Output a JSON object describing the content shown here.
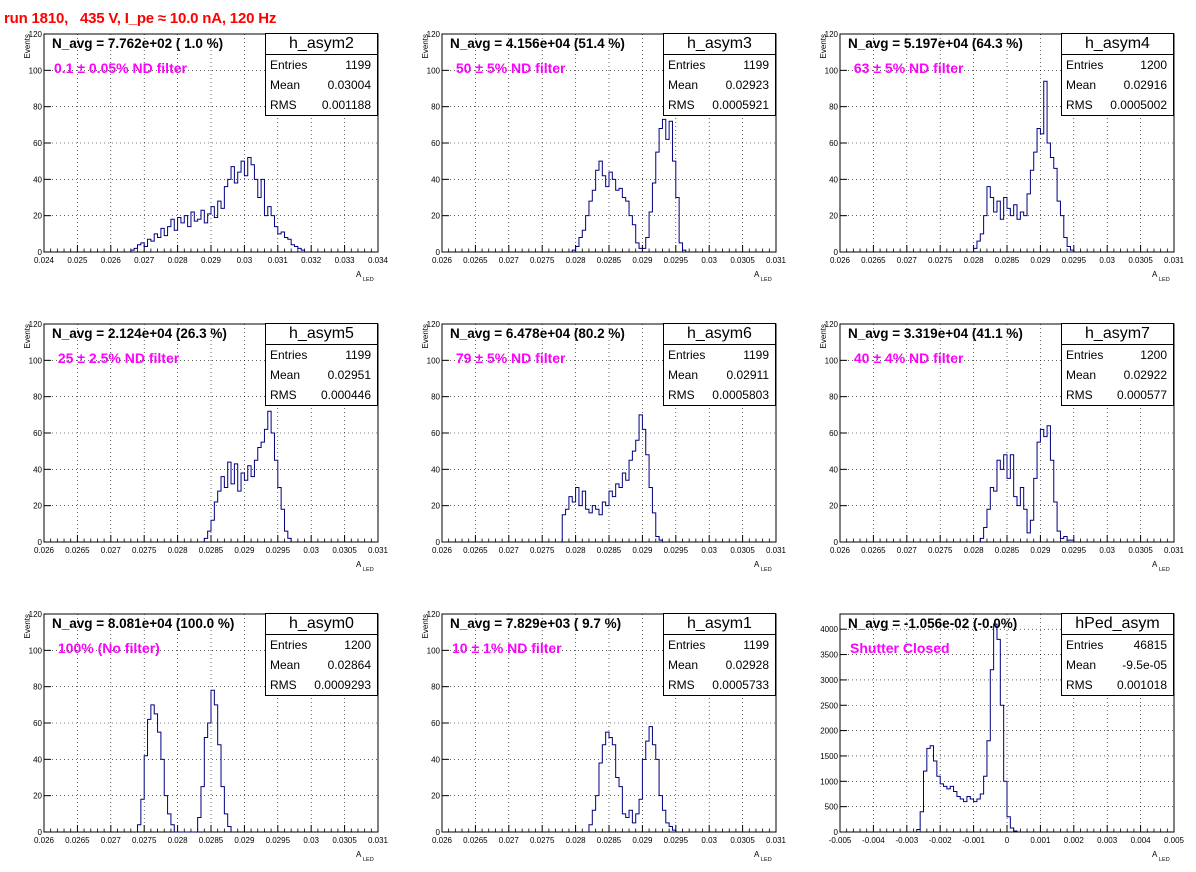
{
  "header": {
    "run_title": "run 1810,   435 V, I_pe ≈ 10.0 nA, 120 Hz"
  },
  "chart_data": [
    {
      "type": "bar",
      "name": "h_asym2",
      "navg": "N_avg = 7.762e+02 ( 1.0 %)",
      "filter": "0.1 ± 0.05% ND filter",
      "stats": {
        "entries_label": "Entries",
        "entries": "1199",
        "mean_label": "Mean",
        "mean": "0.03004",
        "rms_label": "RMS",
        "rms": "0.001188"
      },
      "xlabel": "A",
      "xlabel_sub": "LED",
      "ylabel": "Events",
      "xlim": [
        0.024,
        0.034
      ],
      "ylim": [
        0,
        120
      ],
      "xticks": [
        "0.024",
        "0.025",
        "0.026",
        "0.027",
        "0.028",
        "0.029",
        "0.03",
        "0.031",
        "0.032",
        "0.033",
        "0.034"
      ],
      "yticks": [
        "0",
        "20",
        "40",
        "60",
        "80",
        "100",
        "120"
      ],
      "bin_start": 0.0266,
      "bin_width": 0.0001,
      "values": [
        1,
        2,
        4,
        5,
        3,
        7,
        6,
        10,
        8,
        13,
        9,
        14,
        18,
        12,
        19,
        16,
        20,
        14,
        22,
        17,
        18,
        23,
        16,
        21,
        25,
        19,
        28,
        24,
        36,
        40,
        47,
        38,
        44,
        50,
        42,
        52,
        48,
        40,
        30,
        40,
        20,
        25,
        20,
        14,
        10,
        11,
        8,
        7,
        4,
        3,
        2,
        1
      ]
    },
    {
      "type": "bar",
      "name": "h_asym3",
      "navg": "N_avg = 4.156e+04 (51.4 %)",
      "filter": " 50 ± 5% ND filter",
      "stats": {
        "entries_label": "Entries",
        "entries": "1199",
        "mean_label": "Mean",
        "mean": "0.02923",
        "rms_label": "RMS",
        "rms": "0.0005921"
      },
      "xlabel": "A",
      "xlabel_sub": "LED",
      "ylabel": "Events",
      "xlim": [
        0.026,
        0.031
      ],
      "ylim": [
        0,
        120
      ],
      "xticks": [
        "0.026",
        "0.0265",
        "0.027",
        "0.0275",
        "0.028",
        "0.0285",
        "0.029",
        "0.0295",
        "0.03",
        "0.0305",
        "0.031"
      ],
      "yticks": [
        "0",
        "20",
        "40",
        "60",
        "80",
        "100",
        "120"
      ],
      "bin_start": 0.02795,
      "bin_width": 5e-05,
      "values": [
        1,
        3,
        8,
        12,
        20,
        28,
        34,
        45,
        50,
        42,
        36,
        44,
        40,
        34,
        35,
        30,
        28,
        20,
        15,
        5,
        2,
        2,
        8,
        22,
        38,
        55,
        68,
        73,
        62,
        72,
        50,
        30,
        5,
        1
      ]
    },
    {
      "type": "bar",
      "name": "h_asym4",
      "navg": "N_avg = 5.197e+04 (64.3 %)",
      "filter": " 63 ± 5% ND filter",
      "stats": {
        "entries_label": "Entries",
        "entries": "1200",
        "mean_label": "Mean",
        "mean": "0.02916",
        "rms_label": "RMS",
        "rms": "0.0005002"
      },
      "xlabel": "A",
      "xlabel_sub": "LED",
      "ylabel": "Events",
      "xlim": [
        0.026,
        0.031
      ],
      "ylim": [
        0,
        120
      ],
      "xticks": [
        "0.026",
        "0.0265",
        "0.027",
        "0.0275",
        "0.028",
        "0.0285",
        "0.029",
        "0.0295",
        "0.03",
        "0.0305",
        "0.031"
      ],
      "yticks": [
        "0",
        "20",
        "40",
        "60",
        "80",
        "100",
        "120"
      ],
      "bin_start": 0.028,
      "bin_width": 5e-05,
      "values": [
        2,
        6,
        10,
        20,
        36,
        30,
        22,
        28,
        18,
        30,
        24,
        20,
        26,
        18,
        22,
        20,
        32,
        45,
        55,
        68,
        65,
        94,
        60,
        52,
        46,
        28,
        20,
        8,
        3,
        1
      ]
    },
    {
      "type": "bar",
      "name": "h_asym5",
      "navg": "N_avg = 2.124e+04 (26.3 %)",
      "filter": " 25 ± 2.5% ND filter",
      "stats": {
        "entries_label": "Entries",
        "entries": "1199",
        "mean_label": "Mean",
        "mean": "0.02951",
        "rms_label": "RMS",
        "rms": "0.000446"
      },
      "xlabel": "A",
      "xlabel_sub": "LED",
      "ylabel": "Events",
      "xlim": [
        0.026,
        0.031
      ],
      "ylim": [
        0,
        120
      ],
      "xticks": [
        "0.026",
        "0.0265",
        "0.027",
        "0.0275",
        "0.028",
        "0.0285",
        "0.029",
        "0.0295",
        "0.03",
        "0.0305",
        "0.031"
      ],
      "yticks": [
        "0",
        "20",
        "40",
        "60",
        "80",
        "100",
        "120"
      ],
      "bin_start": 0.0284,
      "bin_width": 5e-05,
      "values": [
        2,
        6,
        12,
        22,
        28,
        36,
        30,
        44,
        32,
        43,
        28,
        38,
        34,
        42,
        36,
        45,
        52,
        55,
        62,
        72,
        60,
        45,
        30,
        18,
        6,
        2
      ]
    },
    {
      "type": "bar",
      "name": "h_asym6",
      "navg": "N_avg = 6.478e+04 (80.2 %)",
      "filter": " 79 ± 5% ND filter",
      "stats": {
        "entries_label": "Entries",
        "entries": "1199",
        "mean_label": "Mean",
        "mean": "0.02911",
        "rms_label": "RMS",
        "rms": "0.0005803"
      },
      "xlabel": "A",
      "xlabel_sub": "LED",
      "ylabel": "Events",
      "xlim": [
        0.026,
        0.031
      ],
      "ylim": [
        0,
        120
      ],
      "xticks": [
        "0.026",
        "0.0265",
        "0.027",
        "0.0275",
        "0.028",
        "0.0285",
        "0.029",
        "0.0295",
        "0.03",
        "0.0305",
        "0.031"
      ],
      "yticks": [
        "0",
        "20",
        "40",
        "60",
        "80",
        "100",
        "120"
      ],
      "bin_start": 0.0278,
      "bin_width": 5e-05,
      "values": [
        15,
        18,
        25,
        22,
        30,
        20,
        28,
        18,
        16,
        20,
        18,
        15,
        22,
        20,
        28,
        25,
        32,
        30,
        38,
        34,
        45,
        50,
        56,
        70,
        62,
        48,
        30,
        16,
        3,
        1
      ]
    },
    {
      "type": "bar",
      "name": "h_asym7",
      "navg": "N_avg = 3.319e+04 (41.1 %)",
      "filter": " 40 ± 4% ND filter",
      "stats": {
        "entries_label": "Entries",
        "entries": "1200",
        "mean_label": "Mean",
        "mean": "0.02922",
        "rms_label": "RMS",
        "rms": "0.000577"
      },
      "xlabel": "A",
      "xlabel_sub": "LED",
      "ylabel": "Events",
      "xlim": [
        0.026,
        0.031
      ],
      "ylim": [
        0,
        120
      ],
      "xticks": [
        "0.026",
        "0.0265",
        "0.027",
        "0.0275",
        "0.028",
        "0.0285",
        "0.029",
        "0.0295",
        "0.03",
        "0.0305",
        "0.031"
      ],
      "yticks": [
        "0",
        "20",
        "40",
        "60",
        "80",
        "100",
        "120"
      ],
      "bin_start": 0.0281,
      "bin_width": 5e-05,
      "values": [
        2,
        8,
        18,
        30,
        28,
        45,
        40,
        48,
        35,
        48,
        25,
        20,
        30,
        18,
        5,
        12,
        35,
        55,
        62,
        58,
        64,
        45,
        22,
        6,
        2,
        3,
        1,
        1
      ]
    },
    {
      "type": "bar",
      "name": "h_asym0",
      "navg": "N_avg = 8.081e+04 (100.0 %)",
      "filter": " 100% (No filter)",
      "stats": {
        "entries_label": "Entries",
        "entries": "1200",
        "mean_label": "Mean",
        "mean": "0.02864",
        "rms_label": "RMS",
        "rms": "0.0009293"
      },
      "xlabel": "A",
      "xlabel_sub": "LED",
      "ylabel": "Events",
      "xlim": [
        0.026,
        0.031
      ],
      "ylim": [
        0,
        120
      ],
      "xticks": [
        "0.026",
        "0.0265",
        "0.027",
        "0.0275",
        "0.028",
        "0.0285",
        "0.029",
        "0.0295",
        "0.03",
        "0.0305",
        "0.031"
      ],
      "yticks": [
        "0",
        "20",
        "40",
        "60",
        "80",
        "100",
        "120"
      ],
      "bin_start": 0.0274,
      "bin_width": 5e-05,
      "values": [
        4,
        18,
        42,
        62,
        70,
        65,
        55,
        40,
        20,
        10,
        4,
        0,
        0,
        0,
        0,
        0,
        0,
        0,
        8,
        25,
        52,
        60,
        78,
        70,
        48,
        25,
        10,
        3
      ]
    },
    {
      "type": "bar",
      "name": "h_asym1",
      "navg": "N_avg = 7.829e+03 ( 9.7 %)",
      "filter": "10 ± 1% ND filter",
      "stats": {
        "entries_label": "Entries",
        "entries": "1199",
        "mean_label": "Mean",
        "mean": "0.02928",
        "rms_label": "RMS",
        "rms": "0.0005733"
      },
      "xlabel": "A",
      "xlabel_sub": "LED",
      "ylabel": "Events",
      "xlim": [
        0.026,
        0.031
      ],
      "ylim": [
        0,
        120
      ],
      "xticks": [
        "0.026",
        "0.0265",
        "0.027",
        "0.0275",
        "0.028",
        "0.0285",
        "0.029",
        "0.0295",
        "0.03",
        "0.0305",
        "0.031"
      ],
      "yticks": [
        "0",
        "20",
        "40",
        "60",
        "80",
        "100",
        "120"
      ],
      "bin_start": 0.0282,
      "bin_width": 5e-05,
      "values": [
        4,
        12,
        20,
        38,
        48,
        55,
        52,
        48,
        30,
        25,
        10,
        8,
        12,
        5,
        10,
        18,
        40,
        50,
        58,
        48,
        40,
        20,
        12,
        5,
        3,
        1
      ]
    },
    {
      "type": "bar",
      "name": "hPed_asym",
      "navg": "N_avg = -1.056e-02 (-0.0%)",
      "filter": "Shutter Closed",
      "stats": {
        "entries_label": "Entries",
        "entries": "46815",
        "mean_label": "Mean",
        "mean": "-9.5e-05",
        "rms_label": "RMS",
        "rms": "0.001018"
      },
      "xlabel": "A",
      "xlabel_sub": "LED",
      "ylabel": "",
      "xlim": [
        -0.005,
        0.005
      ],
      "ylim": [
        0,
        4300
      ],
      "xticks": [
        "-0.005",
        "-0.004",
        "-0.003",
        "-0.002",
        "-0.001",
        "0",
        "0.001",
        "0.002",
        "0.003",
        "0.004",
        "0.005"
      ],
      "yticks": [
        "0",
        "500",
        "1000",
        "1500",
        "2000",
        "2500",
        "3000",
        "3500",
        "4000"
      ],
      "ytick_values": [
        0,
        500,
        1000,
        1500,
        2000,
        2500,
        3000,
        3500,
        4000
      ],
      "bin_start": -0.0027,
      "bin_width": 0.0001,
      "values": [
        50,
        400,
        1200,
        1650,
        1700,
        1400,
        1100,
        950,
        900,
        850,
        900,
        800,
        700,
        650,
        600,
        700,
        650,
        600,
        650,
        750,
        1100,
        1800,
        3200,
        4100,
        3800,
        2500,
        1000,
        300,
        80,
        20
      ]
    }
  ]
}
